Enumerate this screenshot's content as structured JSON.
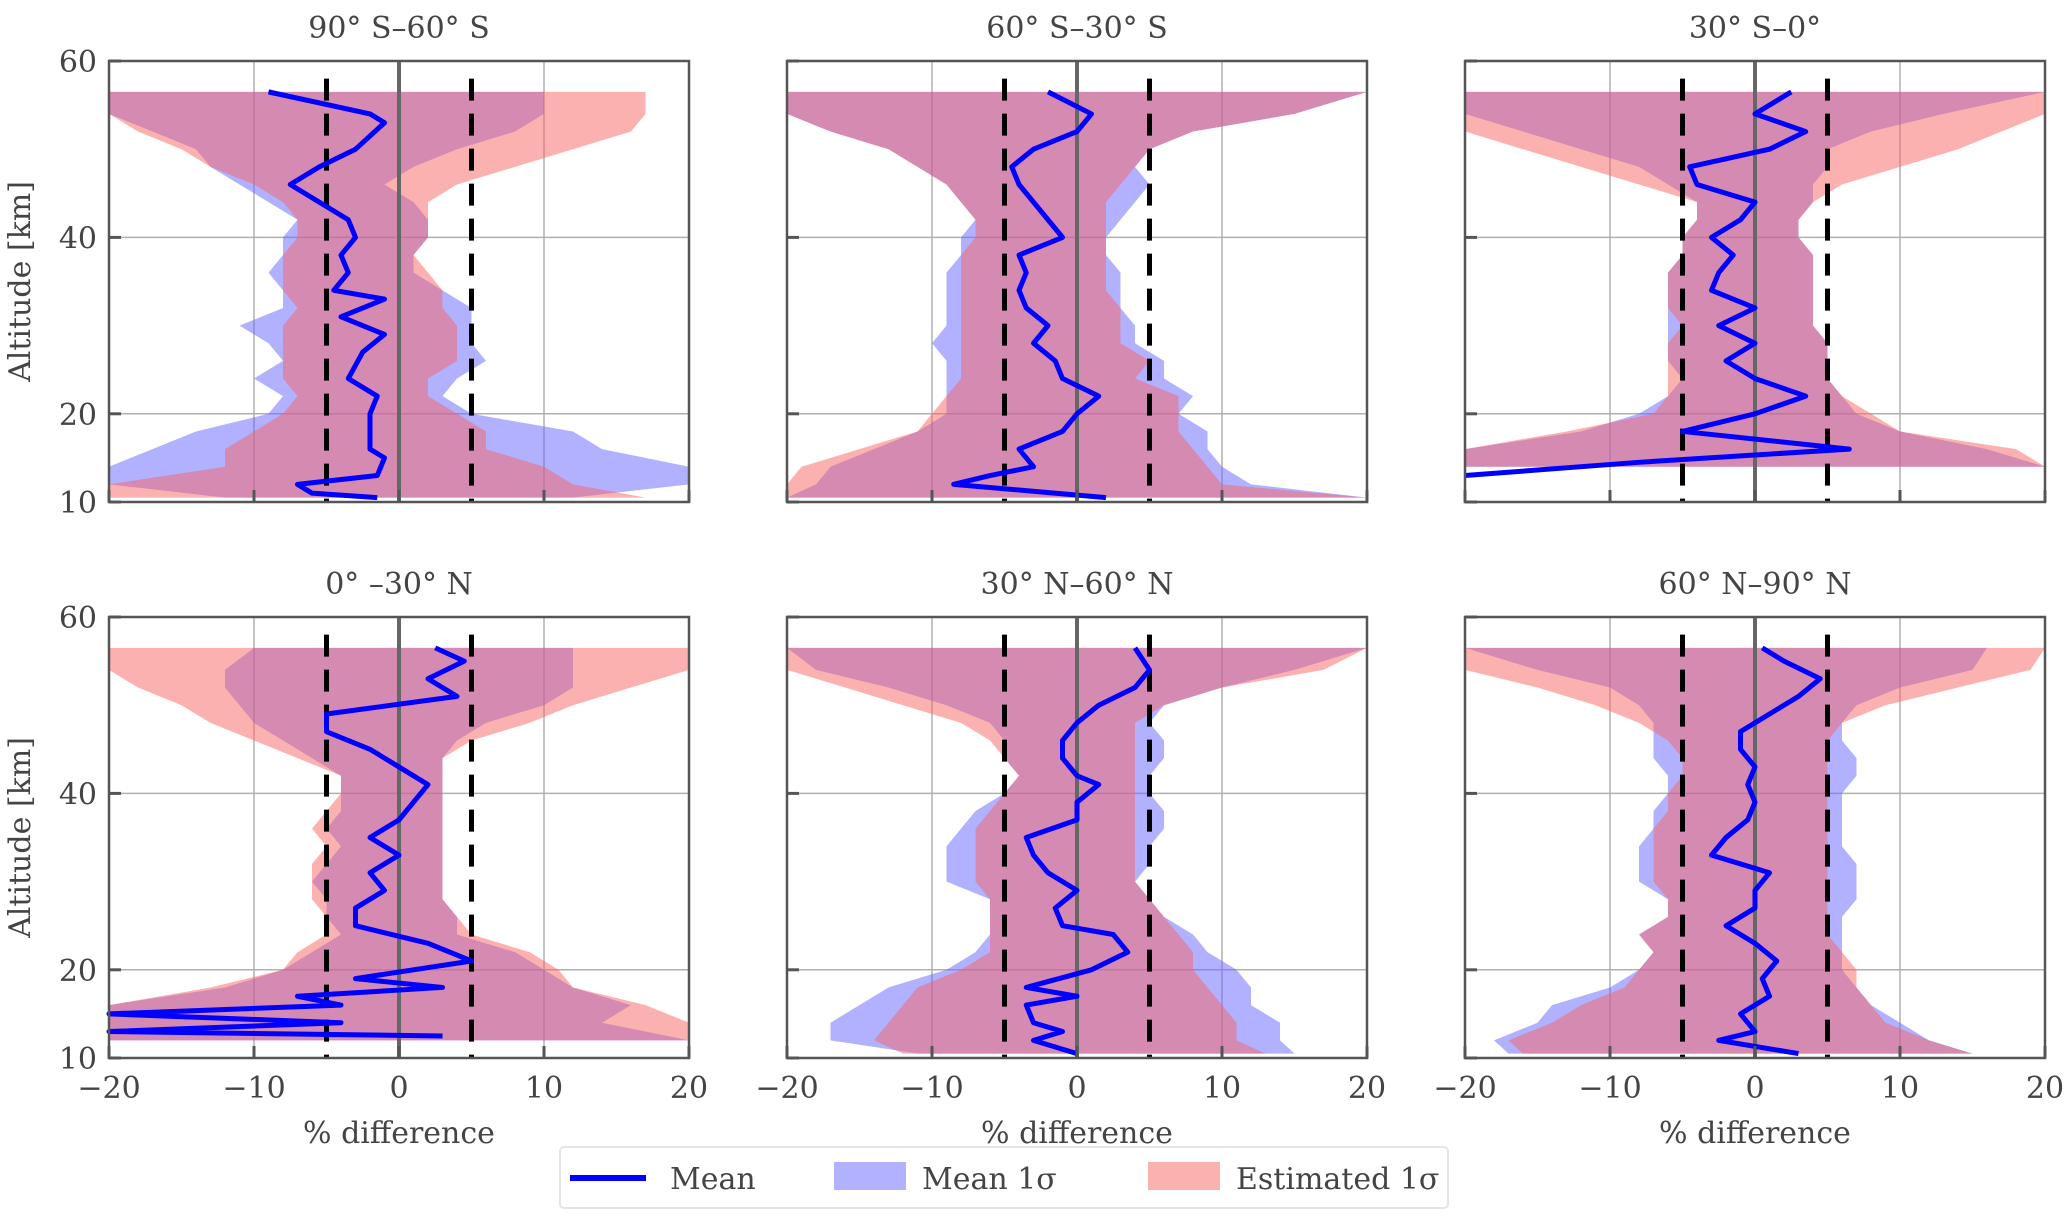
{
  "chart_data": {
    "type": "area",
    "xlabel": "% difference",
    "ylabel": "Altitude [km]",
    "xlim": [
      -20,
      20
    ],
    "ylim": [
      10,
      60
    ],
    "xticks": [
      -20,
      -10,
      0,
      10,
      20
    ],
    "yticks": [
      10,
      20,
      40,
      60
    ],
    "grid": true,
    "reference_lines": {
      "dashed": [
        -5,
        5
      ],
      "solid": [
        0
      ]
    },
    "legend": {
      "placement": "bottom-center",
      "entries": [
        "Mean",
        "Mean 1σ",
        "Estimated 1σ"
      ]
    },
    "colors": {
      "mean": "#0000ff",
      "mean_sigma": "#b1b1ff",
      "estimated_sigma": "#fcb1b1"
    },
    "band_altitude": [
      10.5,
      12,
      14,
      16,
      18,
      20,
      22,
      24,
      26,
      28,
      30,
      32,
      34,
      36,
      38,
      40,
      42,
      44,
      46,
      48,
      50,
      52,
      54,
      56.5
    ],
    "panels": [
      {
        "title": "90° S–60° S",
        "mean": {
          "alt": [
            10.5,
            11,
            12,
            13,
            15,
            16,
            20,
            22,
            24,
            27,
            29,
            31,
            33,
            34,
            36,
            38,
            40,
            42,
            44,
            46,
            48,
            50,
            53,
            54,
            56.5
          ],
          "diff": [
            -1.5,
            -6,
            -7,
            -1.5,
            -1,
            -2,
            -2,
            -1.5,
            -3.5,
            -2.5,
            -1,
            -4,
            -1,
            -4.5,
            -3.5,
            -4,
            -3,
            -3.5,
            -5.5,
            -7.5,
            -5.5,
            -3,
            -1,
            -2,
            -9
          ]
        },
        "mean_sigma_lo": [
          -12,
          -20,
          -20,
          -17,
          -14,
          -9,
          -8,
          -10,
          -8,
          -9,
          -11,
          -8,
          -8,
          -9,
          -8,
          -8,
          -7,
          -9,
          -11,
          -13,
          -14,
          -17,
          -20,
          -20
        ],
        "mean_sigma_hi": [
          12,
          20,
          20,
          14,
          12,
          5,
          3,
          4,
          6,
          5,
          5,
          5,
          3,
          1,
          1,
          2,
          2,
          1,
          -1,
          1,
          4,
          8,
          10,
          10
        ],
        "est_sigma_lo": [
          -20,
          -20,
          -12,
          -12,
          -10,
          -8,
          -7,
          -8,
          -8,
          -8,
          -8,
          -7,
          -8,
          -8,
          -8,
          -7,
          -7,
          -8,
          -10,
          -13,
          -15,
          -18,
          -20,
          -20
        ],
        "est_sigma_hi": [
          17,
          12,
          10,
          6,
          6,
          4,
          2,
          2,
          4,
          4,
          4,
          3,
          3,
          2,
          1,
          2,
          2,
          2,
          4,
          8,
          12,
          16,
          17,
          17
        ]
      },
      {
        "title": "60° S–30° S",
        "mean": {
          "alt": [
            10.5,
            12,
            13,
            14,
            16,
            18,
            20,
            22,
            24,
            26,
            28,
            30,
            32,
            34,
            36,
            38,
            40,
            42,
            44,
            46,
            48,
            50,
            52,
            54,
            56.5
          ],
          "diff": [
            2,
            -8.5,
            -6,
            -3,
            -4,
            -1,
            0,
            1.5,
            -1,
            -1.5,
            -3,
            -2,
            -3.5,
            -4,
            -3.5,
            -4,
            -1,
            -2,
            -3,
            -4,
            -4.5,
            -3,
            0,
            1,
            -2
          ]
        },
        "mean_sigma_lo": [
          -20,
          -18,
          -17,
          -14,
          -11,
          -9,
          -9,
          -9,
          -9,
          -10,
          -9,
          -9,
          -9,
          -9,
          -8,
          -8,
          -7,
          -8,
          -9,
          -11,
          -13,
          -17,
          -20,
          -20
        ],
        "mean_sigma_hi": [
          20,
          12,
          10,
          9,
          9,
          7,
          8,
          6,
          6,
          4,
          4,
          3,
          3,
          3,
          2,
          2,
          3,
          4,
          5,
          4,
          5,
          8,
          15,
          20
        ],
        "est_sigma_lo": [
          -20,
          -20,
          -19,
          -15,
          -11,
          -10,
          -9,
          -8,
          -8,
          -8,
          -8,
          -8,
          -8,
          -8,
          -8,
          -7,
          -7,
          -8,
          -9,
          -11,
          -13,
          -17,
          -20,
          -20
        ],
        "est_sigma_hi": [
          20,
          10,
          9,
          8,
          7,
          7,
          7,
          4,
          5,
          3,
          3,
          3,
          2,
          2,
          2,
          2,
          2,
          2,
          3,
          4,
          5,
          8,
          15,
          20
        ]
      },
      {
        "title": "30° S–0°",
        "mean": {
          "alt": [
            13,
            14.5,
            16,
            18,
            20,
            22,
            24,
            26,
            28,
            30,
            32,
            34,
            36,
            38,
            40,
            42,
            44,
            46,
            48,
            50,
            52,
            54,
            56.5
          ],
          "diff": [
            -20,
            -8,
            6.5,
            -5,
            0,
            3.5,
            0,
            -2,
            0,
            -2.5,
            0,
            -3,
            -2.5,
            -1.5,
            -3,
            -1,
            0,
            -4,
            -4.5,
            1,
            3.5,
            0,
            2.5
          ]
        },
        "mean_sigma_lo": [
          null,
          null,
          -20,
          -20,
          -12,
          -8,
          -6,
          -5,
          -6,
          -6,
          -6,
          -6,
          -6,
          -6,
          -5,
          -5,
          -4,
          -4,
          -6,
          -8,
          -12,
          -16,
          -20,
          -20
        ],
        "mean_sigma_hi": [
          null,
          null,
          20,
          16,
          10,
          7,
          6,
          5,
          5,
          5,
          4,
          4,
          4,
          4,
          4,
          3,
          3,
          4,
          4,
          5,
          5,
          8,
          13,
          20
        ],
        "est_sigma_lo": [
          null,
          null,
          -20,
          -20,
          -13,
          -7,
          -6,
          -6,
          -6,
          -6,
          -5,
          -6,
          -6,
          -6,
          -5,
          -5,
          -4,
          -4,
          -8,
          -12,
          -16,
          -20,
          -20,
          -20
        ],
        "est_sigma_hi": [
          null,
          null,
          20,
          18,
          10,
          8,
          6,
          5,
          5,
          5,
          4,
          4,
          4,
          4,
          4,
          3,
          3,
          4,
          6,
          10,
          14,
          17,
          20,
          20
        ]
      },
      {
        "title": "0° –30° N",
        "mean": {
          "alt": [
            12.5,
            13,
            14,
            15,
            16,
            17,
            18,
            19,
            21,
            23,
            25,
            27,
            29,
            31,
            33,
            35,
            37,
            39,
            41,
            43,
            45,
            47,
            49,
            51,
            53,
            55,
            56.5
          ],
          "diff": [
            3,
            -20,
            -4,
            -20,
            -4,
            -7,
            3,
            -3,
            5,
            2,
            -3,
            -3,
            -1,
            -2,
            0,
            -2,
            0,
            1,
            2,
            0,
            -2,
            -5,
            -5,
            4,
            2,
            4.5,
            2.5
          ]
        },
        "mean_sigma_lo": [
          null,
          -20,
          -20,
          -20,
          -12,
          -8,
          -6,
          -4,
          -5,
          -5,
          -6,
          -5,
          -4,
          -5,
          -4,
          -4,
          -4,
          -6,
          -8,
          -10,
          -11,
          -12,
          -12,
          -10
        ],
        "mean_sigma_hi": [
          null,
          20,
          14,
          16,
          12,
          10,
          8,
          4,
          4,
          3,
          3,
          3,
          3,
          3,
          3,
          3,
          3,
          3,
          4,
          6,
          10,
          12,
          12,
          12
        ],
        "est_sigma_lo": [
          null,
          -20,
          -20,
          -20,
          -13,
          -8,
          -7,
          -5,
          -5,
          -6,
          -6,
          -6,
          -5,
          -6,
          -5,
          -4,
          -4,
          -7,
          -10,
          -13,
          -15,
          -18,
          -20,
          -20
        ],
        "est_sigma_hi": [
          null,
          20,
          20,
          17,
          12,
          11,
          9,
          5,
          4,
          3,
          3,
          3,
          3,
          3,
          3,
          3,
          3,
          3,
          5,
          9,
          12,
          16,
          20,
          20
        ]
      },
      {
        "title": "30° N–60° N",
        "mean": {
          "alt": [
            10.5,
            12,
            13,
            14,
            16,
            17,
            18,
            20,
            22,
            24,
            25,
            27,
            29,
            31,
            33,
            35,
            37,
            39,
            41,
            42,
            44,
            46,
            48,
            50,
            52,
            54,
            56.5
          ],
          "diff": [
            0,
            -3,
            -1,
            -3,
            -3.5,
            0,
            -3.5,
            1,
            3.5,
            2.5,
            -1,
            -1.5,
            0,
            -2,
            -3,
            -3.5,
            0,
            0,
            1.5,
            0,
            -1,
            -1,
            0,
            1.5,
            4,
            5,
            4
          ]
        },
        "mean_sigma_lo": [
          -11,
          -17,
          -17,
          -15,
          -13,
          -9,
          -7,
          -6,
          -6,
          -6,
          -9,
          -9,
          -9,
          -8,
          -7,
          -5,
          -4,
          -5,
          -5,
          -6,
          -9,
          -13,
          -18,
          -20
        ],
        "mean_sigma_hi": [
          15,
          14,
          14,
          12,
          12,
          11,
          9,
          8,
          6,
          5,
          4,
          5,
          5,
          6,
          6,
          5,
          5,
          6,
          6,
          5,
          6,
          10,
          15,
          20
        ],
        "est_sigma_lo": [
          -12,
          -14,
          -13,
          -12,
          -11,
          -8,
          -6,
          -6,
          -6,
          -6,
          -7,
          -7,
          -7,
          -7,
          -6,
          -5,
          -4,
          -5,
          -6,
          -8,
          -12,
          -16,
          -20,
          -20
        ],
        "est_sigma_hi": [
          13,
          11,
          11,
          10,
          9,
          8,
          8,
          7,
          6,
          5,
          4,
          4,
          4,
          4,
          4,
          4,
          4,
          4,
          4,
          4,
          6,
          10,
          17,
          20
        ]
      },
      {
        "title": "60° N–90° N",
        "mean": {
          "alt": [
            10.5,
            12,
            13,
            15,
            17,
            19,
            21,
            23,
            25,
            27,
            29,
            31,
            33,
            35,
            37,
            39,
            41,
            43,
            45,
            47,
            49,
            51,
            53,
            55,
            56.5
          ],
          "diff": [
            3,
            -2.5,
            0,
            -1,
            1,
            0.5,
            1.5,
            0,
            -2,
            0,
            0,
            1,
            -3,
            -2,
            -0.5,
            0,
            -0.5,
            0,
            -1,
            -1,
            1,
            3,
            4.5,
            2,
            0.5
          ]
        },
        "mean_sigma_lo": [
          -17,
          -18,
          -15,
          -14,
          -10,
          -8,
          -7,
          -8,
          -6,
          -6,
          -8,
          -8,
          -8,
          -7,
          -7,
          -6,
          -6,
          -7,
          -7,
          -7,
          -8,
          -10,
          -15,
          -20
        ],
        "mean_sigma_hi": [
          15,
          12,
          10,
          8,
          7,
          6,
          6,
          6,
          6,
          7,
          7,
          7,
          6,
          6,
          6,
          6,
          7,
          7,
          6,
          6,
          7,
          10,
          15,
          16
        ],
        "est_sigma_lo": [
          -16,
          -17,
          -14,
          -12,
          -9,
          -8,
          -7,
          -8,
          -6,
          -6,
          -7,
          -7,
          -7,
          -7,
          -6,
          -6,
          -5,
          -5,
          -6,
          -8,
          -11,
          -15,
          -20,
          -20
        ],
        "est_sigma_hi": [
          15,
          12,
          9,
          8,
          7,
          7,
          6,
          5,
          5,
          5,
          5,
          5,
          5,
          5,
          5,
          5,
          5,
          5,
          5,
          6,
          9,
          14,
          19,
          20
        ]
      }
    ]
  }
}
